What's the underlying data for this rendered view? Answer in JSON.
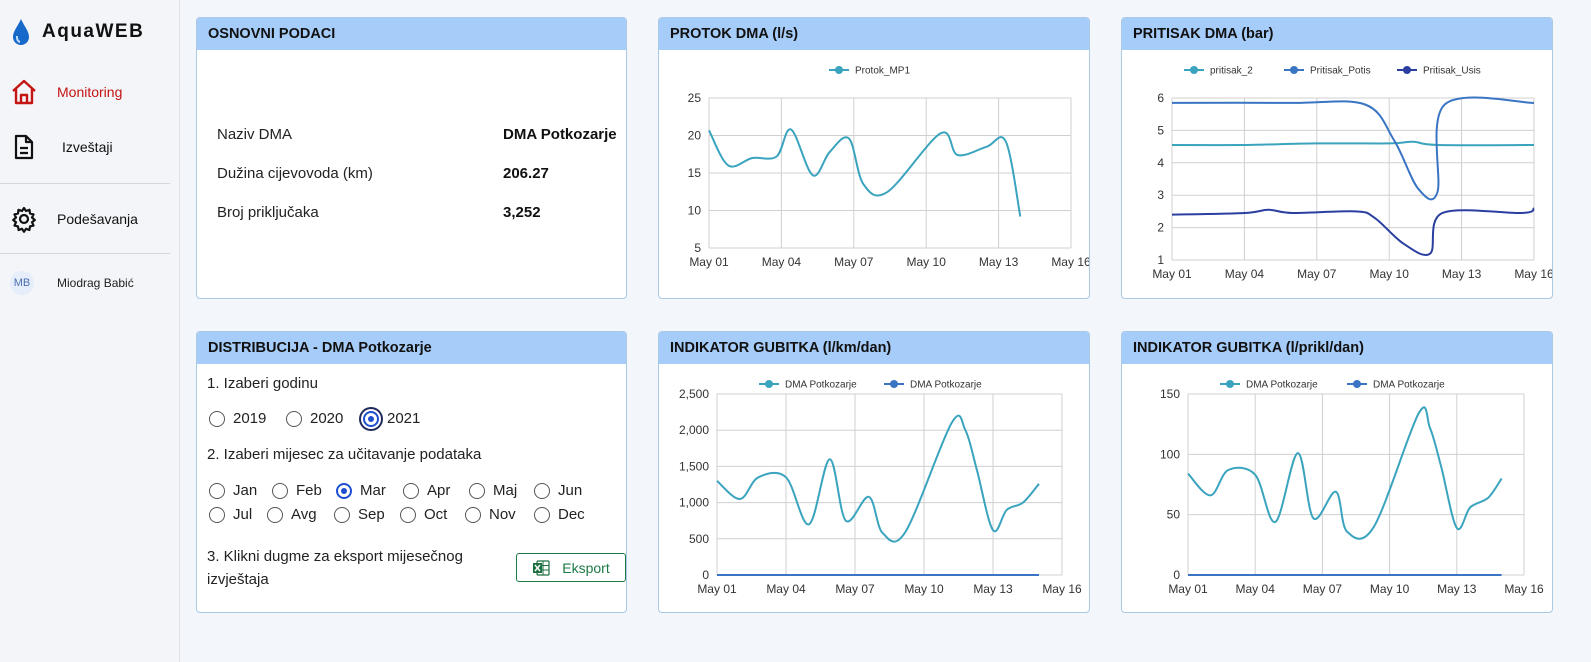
{
  "app": {
    "name": "AquaWEB"
  },
  "sidebar": {
    "items": [
      {
        "label": "Monitoring",
        "icon": "home-icon",
        "active": true
      },
      {
        "label": "Izveštaji",
        "icon": "document-icon"
      },
      {
        "label": "Podešavanja",
        "icon": "gear-icon"
      }
    ],
    "user": {
      "initials": "MB",
      "name": "Miodrag Babić"
    }
  },
  "basic": {
    "title": "OSNOVNI PODACI",
    "rows": [
      {
        "label": "Naziv DMA",
        "value": "DMA Potkozarje"
      },
      {
        "label": "Dužina cijevovoda (km)",
        "value": "206.27"
      },
      {
        "label": "Broj priključaka",
        "value": "3,252"
      }
    ]
  },
  "distribution": {
    "title": "DISTRIBUCIJA - DMA Potkozarje",
    "step1": "1. Izaberi godinu",
    "years": [
      {
        "label": "2019",
        "checked": false
      },
      {
        "label": "2020",
        "checked": false
      },
      {
        "label": "2021",
        "checked": true
      }
    ],
    "step2": "2. Izaberi mijesec za učitavanje podataka",
    "months": [
      {
        "label": "Jan",
        "checked": false
      },
      {
        "label": "Feb",
        "checked": false
      },
      {
        "label": "Mar",
        "checked": true
      },
      {
        "label": "Apr",
        "checked": false
      },
      {
        "label": "Maj",
        "checked": false
      },
      {
        "label": "Jun",
        "checked": false
      },
      {
        "label": "Jul",
        "checked": false
      },
      {
        "label": "Avg",
        "checked": false
      },
      {
        "label": "Sep",
        "checked": false
      },
      {
        "label": "Oct",
        "checked": false
      },
      {
        "label": "Nov",
        "checked": false
      },
      {
        "label": "Dec",
        "checked": false
      }
    ],
    "step3_line1": "3. Klikni dugme za eksport mijesečnog",
    "step3_line2": "izvještaja",
    "export_label": "Eksport"
  },
  "chart_data": [
    {
      "id": "flow",
      "panel_title": "PROTOK DMA (l/s)",
      "type": "line",
      "x": [
        "May 01",
        "May 02",
        "May 03",
        "May 04",
        "May 05",
        "May 06",
        "May 07",
        "May 08",
        "May 09",
        "May 10",
        "May 11",
        "May 12",
        "May 13",
        "May 14",
        "May 15",
        "May 16"
      ],
      "xticks": [
        "May 01",
        "May 04",
        "May 07",
        "May 10",
        "May 13",
        "May 16"
      ],
      "yticks": [
        "5",
        "10",
        "15",
        "20",
        "25"
      ],
      "ylim": [
        5,
        25
      ],
      "series": [
        {
          "name": "Protok_MP1",
          "color": "#3aa4bf",
          "points": [
            [
              0,
              20.7
            ],
            [
              0.8,
              16
            ],
            [
              1.8,
              17
            ],
            [
              2.8,
              17.2
            ],
            [
              3.4,
              20.8
            ],
            [
              4.3,
              14.7
            ],
            [
              5.0,
              17.8
            ],
            [
              5.8,
              19.6
            ],
            [
              6.4,
              13.5
            ],
            [
              7.4,
              12.5
            ],
            [
              9.6,
              20.3
            ],
            [
              10.3,
              17.4
            ],
            [
              11.5,
              18.5
            ],
            [
              12.3,
              19.2
            ],
            [
              12.9,
              9.2
            ]
          ]
        }
      ]
    },
    {
      "id": "pressure",
      "panel_title": "PRITISAK DMA (bar)",
      "type": "line",
      "x": [
        "May 01",
        "May 02",
        "May 03",
        "May 04",
        "May 05",
        "May 06",
        "May 07",
        "May 08",
        "May 09",
        "May 10",
        "May 11",
        "May 12",
        "May 13",
        "May 14",
        "May 15",
        "May 16"
      ],
      "xticks": [
        "May 01",
        "May 04",
        "May 07",
        "May 10",
        "May 13",
        "May 16"
      ],
      "yticks": [
        "1",
        "2",
        "3",
        "4",
        "5",
        "6"
      ],
      "ylim": [
        1,
        6
      ],
      "series": [
        {
          "name": "pritisak_2",
          "color": "#3aa4bf",
          "points": [
            [
              0,
              4.55
            ],
            [
              3,
              4.55
            ],
            [
              6,
              4.6
            ],
            [
              9,
              4.6
            ],
            [
              10,
              4.65
            ],
            [
              11,
              4.55
            ],
            [
              15,
              4.55
            ]
          ]
        },
        {
          "name": "Pritisak_Potis",
          "color": "#3a75c4",
          "points": [
            [
              0,
              5.85
            ],
            [
              5,
              5.85
            ],
            [
              8,
              5.8
            ],
            [
              9.2,
              4.7
            ],
            [
              10.2,
              3.2
            ],
            [
              11,
              3.1
            ],
            [
              11.3,
              5.8
            ],
            [
              15,
              5.85
            ]
          ]
        },
        {
          "name": "Pritisak_Usis",
          "color": "#2b3fa0",
          "points": [
            [
              0,
              2.4
            ],
            [
              3,
              2.45
            ],
            [
              4,
              2.55
            ],
            [
              5,
              2.45
            ],
            [
              7.6,
              2.5
            ],
            [
              8.4,
              2.3
            ],
            [
              9.6,
              1.5
            ],
            [
              10.7,
              1.2
            ],
            [
              11.2,
              2.45
            ],
            [
              14.5,
              2.45
            ],
            [
              15,
              2.6
            ]
          ]
        }
      ]
    },
    {
      "id": "loss_km",
      "panel_title": "INDIKATOR GUBITKA (l/km/dan)",
      "type": "line",
      "x": [
        "May 01",
        "May 02",
        "May 03",
        "May 04",
        "May 05",
        "May 06",
        "May 07",
        "May 08",
        "May 09",
        "May 10",
        "May 11",
        "May 12",
        "May 13",
        "May 14",
        "May 15",
        "May 16"
      ],
      "xticks": [
        "May 01",
        "May 04",
        "May 07",
        "May 10",
        "May 13",
        "May 16"
      ],
      "yticks": [
        "0",
        "500",
        "1,000",
        "1,500",
        "2,000",
        "2,500"
      ],
      "ylim": [
        0,
        2500
      ],
      "series": [
        {
          "name": "DMA Potkozarje",
          "color": "#3aa4bf",
          "points": [
            [
              0,
              1300
            ],
            [
              1,
              1050
            ],
            [
              1.8,
              1350
            ],
            [
              3,
              1350
            ],
            [
              4,
              700
            ],
            [
              4.9,
              1600
            ],
            [
              5.6,
              750
            ],
            [
              6.6,
              1080
            ],
            [
              7.2,
              580
            ],
            [
              8.2,
              600
            ],
            [
              10.2,
              2100
            ],
            [
              10.8,
              2000
            ],
            [
              11.3,
              1450
            ],
            [
              12,
              620
            ],
            [
              12.6,
              900
            ],
            [
              13.3,
              1000
            ],
            [
              14,
              1260
            ]
          ]
        },
        {
          "name": "DMA Potkozarje",
          "color": "#3a75c4",
          "points": [
            [
              0,
              0
            ],
            [
              14,
              0
            ]
          ]
        }
      ]
    },
    {
      "id": "loss_conn",
      "panel_title": "INDIKATOR GUBITKA (l/prikl/dan)",
      "type": "line",
      "x": [
        "May 01",
        "May 02",
        "May 03",
        "May 04",
        "May 05",
        "May 06",
        "May 07",
        "May 08",
        "May 09",
        "May 10",
        "May 11",
        "May 12",
        "May 13",
        "May 14",
        "May 15",
        "May 16"
      ],
      "xticks": [
        "May 01",
        "May 04",
        "May 07",
        "May 10",
        "May 13",
        "May 16"
      ],
      "yticks": [
        "0",
        "50",
        "100",
        "150"
      ],
      "ylim": [
        0,
        150
      ],
      "series": [
        {
          "name": "DMA Potkozarje",
          "color": "#3aa4bf",
          "points": [
            [
              0,
              84
            ],
            [
              1,
              66
            ],
            [
              1.8,
              87
            ],
            [
              3,
              83
            ],
            [
              3.9,
              44
            ],
            [
              4.9,
              101
            ],
            [
              5.6,
              47
            ],
            [
              6.6,
              69
            ],
            [
              7.1,
              36
            ],
            [
              8.3,
              40
            ],
            [
              10.3,
              134
            ],
            [
              10.8,
              122
            ],
            [
              11.3,
              90
            ],
            [
              12,
              39
            ],
            [
              12.6,
              56
            ],
            [
              13.4,
              64
            ],
            [
              14,
              80
            ]
          ]
        },
        {
          "name": "DMA Potkozarje",
          "color": "#3a75c4",
          "points": [
            [
              0,
              0
            ],
            [
              14,
              0
            ]
          ]
        }
      ]
    }
  ]
}
